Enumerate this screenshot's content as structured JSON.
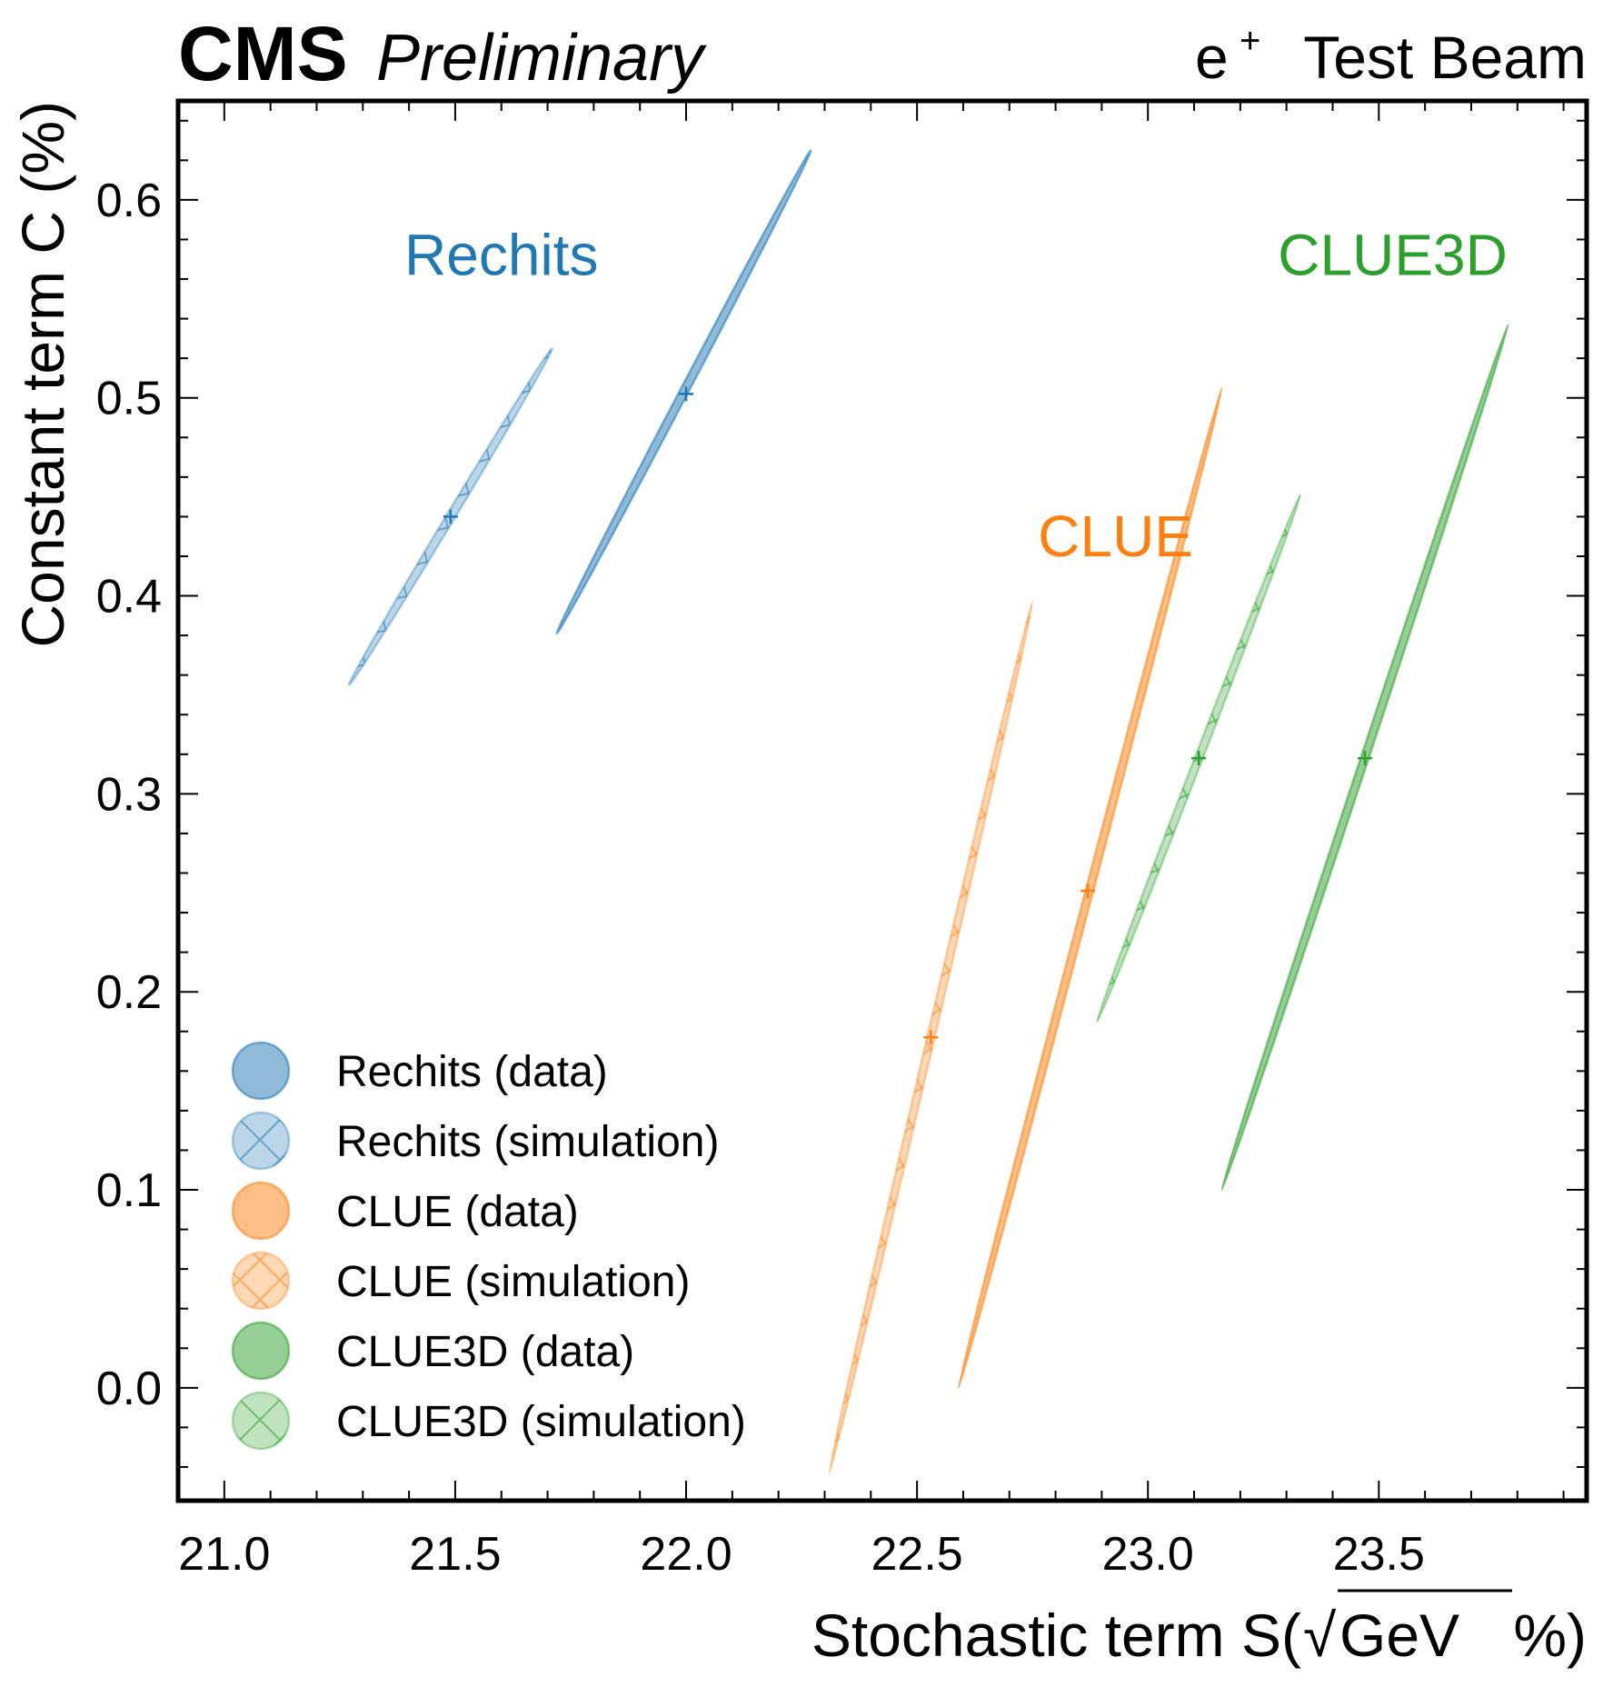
{
  "header": {
    "experiment": "CMS",
    "status": "Preliminary",
    "beam": "e",
    "beam_charge": "+",
    "beam_suffix": "Test Beam"
  },
  "chart_data": {
    "type": "scatter",
    "title": "",
    "xlabel": "Stochastic term S(",
    "xlabel_sqrt": "GeV",
    "xlabel_end": "%)",
    "ylabel": "Constant term C (%)",
    "xlim": [
      20.9,
      23.95
    ],
    "ylim": [
      -0.057,
      0.65
    ],
    "xticks": [
      "21.0",
      "21.5",
      "22.0",
      "22.5",
      "23.0",
      "23.5"
    ],
    "yticks": [
      "0.0",
      "0.1",
      "0.2",
      "0.3",
      "0.4",
      "0.5",
      "0.6"
    ],
    "grid": false,
    "legend_position": "lower-left",
    "colors": {
      "Rechits": "#1f77b4",
      "CLUE": "#ff7f0e",
      "CLUE3D": "#2ca02c"
    },
    "group_labels": [
      {
        "text": "Rechits",
        "color": "#1f77b4",
        "x": 21.6,
        "y": 0.562
      },
      {
        "text": "CLUE",
        "color": "#ff7f0e",
        "x": 22.93,
        "y": 0.42
      },
      {
        "text": "CLUE3D",
        "color": "#2ca02c",
        "x": 23.53,
        "y": 0.562
      }
    ],
    "series": [
      {
        "name": "Rechits (data)",
        "group": "Rechits",
        "kind": "data",
        "color": "#1f77b4",
        "center": [
          22.0,
          0.502
        ],
        "ends": [
          [
            21.72,
            0.381
          ],
          [
            22.27,
            0.625
          ]
        ],
        "extent_x": [
          21.76,
          22.24
        ]
      },
      {
        "name": "Rechits (simulation)",
        "group": "Rechits",
        "kind": "simulation",
        "color": "#1f77b4",
        "center": [
          21.49,
          0.44
        ],
        "ends": [
          [
            21.27,
            0.355
          ],
          [
            21.71,
            0.525
          ]
        ],
        "extent_x": [
          21.29,
          21.7
        ]
      },
      {
        "name": "CLUE (data)",
        "group": "CLUE",
        "kind": "data",
        "color": "#ff7f0e",
        "center": [
          22.87,
          0.251
        ],
        "ends": [
          [
            22.59,
            0.0
          ],
          [
            23.16,
            0.505
          ]
        ],
        "extent_x": [
          22.6,
          23.15
        ]
      },
      {
        "name": "CLUE (simulation)",
        "group": "CLUE",
        "kind": "simulation",
        "color": "#ff7f0e",
        "center": [
          22.53,
          0.177
        ],
        "ends": [
          [
            22.31,
            -0.043
          ],
          [
            22.75,
            0.397
          ]
        ],
        "extent_x": [
          22.33,
          22.73
        ]
      },
      {
        "name": "CLUE3D (data)",
        "group": "CLUE3D",
        "kind": "data",
        "color": "#2ca02c",
        "center": [
          23.47,
          0.318
        ],
        "ends": [
          [
            23.16,
            0.1
          ],
          [
            23.78,
            0.537
          ]
        ],
        "extent_x": [
          23.18,
          23.76
        ]
      },
      {
        "name": "CLUE3D (simulation)",
        "group": "CLUE3D",
        "kind": "simulation",
        "color": "#2ca02c",
        "center": [
          23.11,
          0.318
        ],
        "ends": [
          [
            22.89,
            0.185
          ],
          [
            23.33,
            0.451
          ]
        ],
        "extent_x": [
          22.9,
          23.32
        ]
      }
    ]
  }
}
